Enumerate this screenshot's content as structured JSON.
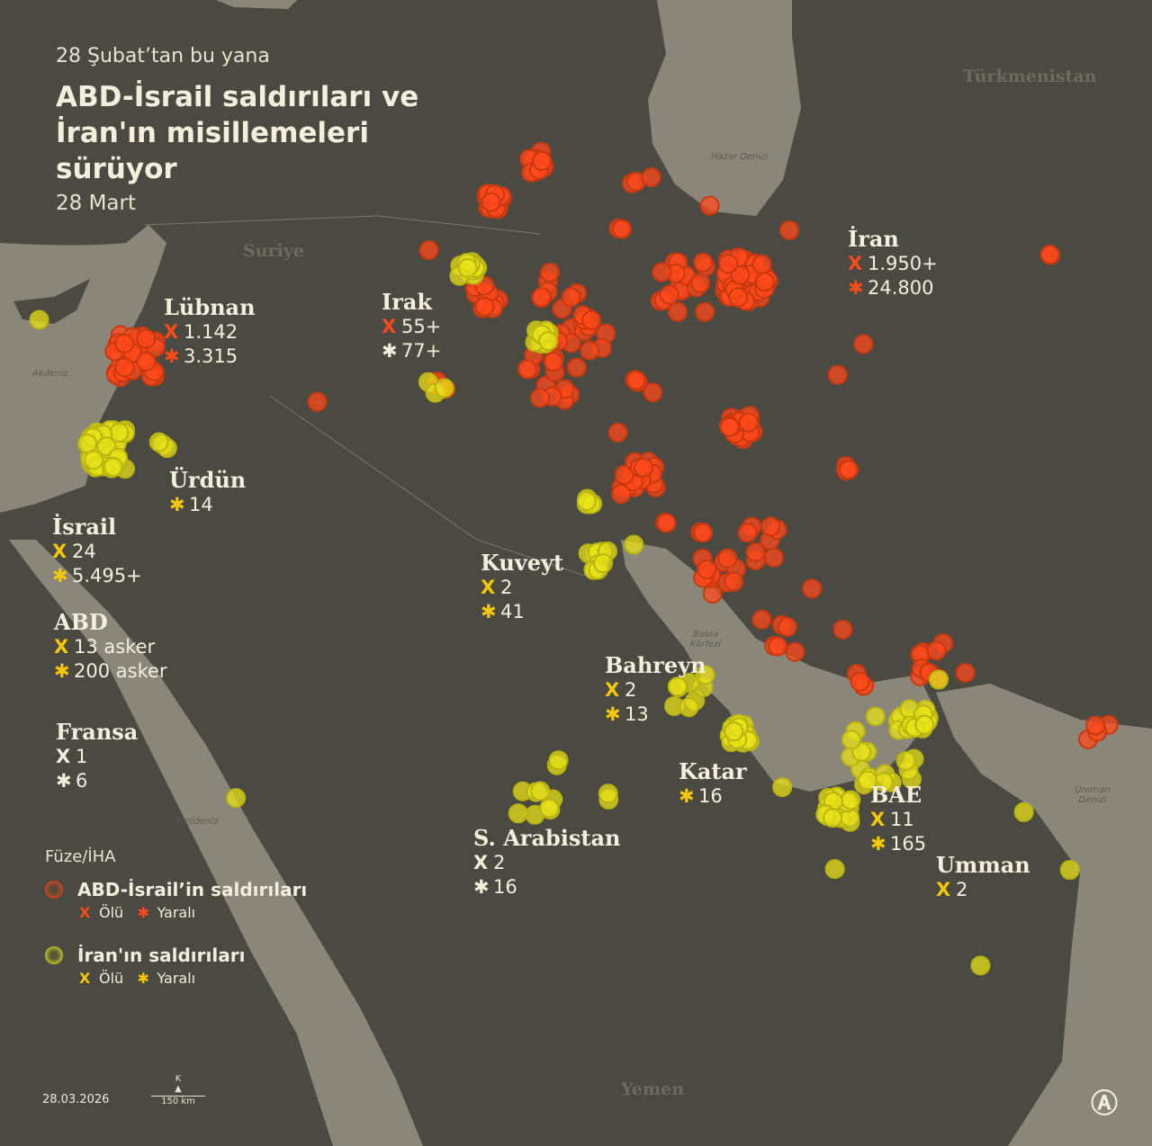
{
  "header": {
    "subtitle": "28 Şubat’tan bu yana",
    "title": "ABD-İsrail saldırıları ve İran'ın misillemeleri sürüyor",
    "date": "28 Mart"
  },
  "colors": {
    "land": "#4b4a42",
    "water": "#8a877a",
    "us_israel_strike": "#ff4a1c",
    "iran_strike": "#e8e21a",
    "iran_marker": "#f5c800"
  },
  "geo_labels": {
    "turkmenistan": "Türkmenistan",
    "syria": "Suriye",
    "yemen": "Yemen"
  },
  "sea_labels": {
    "caspian": "Hazar Denizi",
    "med": "Akdeniz",
    "gulf": "Basra Körfezi",
    "red_sea": "Kızıldeniz",
    "oman_sea": "Umman Denizi"
  },
  "countries": [
    {
      "id": "iran",
      "name": "İran",
      "stats": [
        {
          "icon": "x-icon",
          "color": "red",
          "value": "1.950+"
        },
        {
          "icon": "asterisk-icon",
          "color": "red",
          "value": "24.800"
        }
      ]
    },
    {
      "id": "lebanon",
      "name": "Lübnan",
      "stats": [
        {
          "icon": "x-icon",
          "color": "red",
          "value": "1.142"
        },
        {
          "icon": "asterisk-icon",
          "color": "red",
          "value": "3.315"
        }
      ]
    },
    {
      "id": "iraq",
      "name": "Irak",
      "stats": [
        {
          "icon": "x-icon",
          "color": "red",
          "value": "55+"
        },
        {
          "icon": "asterisk-icon",
          "color": "white",
          "value": "77+"
        }
      ]
    },
    {
      "id": "jordan",
      "name": "Ürdün",
      "stats": [
        {
          "icon": "asterisk-icon",
          "color": "yellow",
          "value": "14"
        }
      ]
    },
    {
      "id": "israel",
      "name": "İsrail",
      "stats": [
        {
          "icon": "x-icon",
          "color": "yellow",
          "value": "24"
        },
        {
          "icon": "asterisk-icon",
          "color": "yellow",
          "value": "5.495+"
        }
      ]
    },
    {
      "id": "usa",
      "name": "ABD",
      "stats": [
        {
          "icon": "x-icon",
          "color": "yellow",
          "value": "13 asker"
        },
        {
          "icon": "asterisk-icon",
          "color": "yellow",
          "value": "200 asker"
        }
      ]
    },
    {
      "id": "france",
      "name": "Fransa",
      "stats": [
        {
          "icon": "x-icon",
          "color": "white",
          "value": "1"
        },
        {
          "icon": "asterisk-icon",
          "color": "white",
          "value": "6"
        }
      ]
    },
    {
      "id": "kuwait",
      "name": "Kuveyt",
      "stats": [
        {
          "icon": "x-icon",
          "color": "yellow",
          "value": "2"
        },
        {
          "icon": "asterisk-icon",
          "color": "yellow",
          "value": "41"
        }
      ]
    },
    {
      "id": "bahrain",
      "name": "Bahreyn",
      "stats": [
        {
          "icon": "x-icon",
          "color": "yellow",
          "value": "2"
        },
        {
          "icon": "asterisk-icon",
          "color": "yellow",
          "value": "13"
        }
      ]
    },
    {
      "id": "qatar",
      "name": "Katar",
      "stats": [
        {
          "icon": "asterisk-icon",
          "color": "yellow",
          "value": "16"
        }
      ]
    },
    {
      "id": "uae",
      "name": "BAE",
      "stats": [
        {
          "icon": "x-icon",
          "color": "yellow",
          "value": "11"
        },
        {
          "icon": "asterisk-icon",
          "color": "yellow",
          "value": "165"
        }
      ]
    },
    {
      "id": "saudi",
      "name": "S. Arabistan",
      "stats": [
        {
          "icon": "x-icon",
          "color": "white",
          "value": "2"
        },
        {
          "icon": "asterisk-icon",
          "color": "white",
          "value": "16"
        }
      ]
    },
    {
      "id": "oman",
      "name": "Umman",
      "stats": [
        {
          "icon": "x-icon",
          "color": "yellow",
          "value": "2"
        }
      ]
    }
  ],
  "legend": {
    "heading": "Füze/İHA",
    "us_israel": "ABD-İsrail’in saldırıları",
    "iran": "İran'ın saldırıları",
    "dead": "Ölü",
    "wounded": "Yaralı"
  },
  "footer": {
    "date": "28.03.2026",
    "north": "K",
    "scale": "150 km",
    "logo": "AA"
  }
}
